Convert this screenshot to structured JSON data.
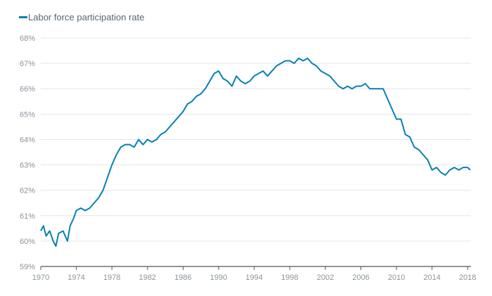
{
  "chart_data": {
    "type": "line",
    "title": "",
    "legend": [
      "Labor force participation rate"
    ],
    "legend_position": "top-left",
    "xlabel": "",
    "ylabel": "",
    "xlim": [
      1970,
      2018.3
    ],
    "ylim": [
      59,
      68
    ],
    "grid": true,
    "xticks": [
      "1970",
      "1974",
      "1978",
      "1982",
      "1986",
      "1990",
      "1994",
      "1998",
      "2002",
      "2006",
      "2010",
      "2014",
      "2018"
    ],
    "yticks": [
      "59%",
      "60%",
      "61%",
      "62%",
      "63%",
      "64%",
      "65%",
      "66%",
      "67%",
      "68%"
    ],
    "color": "#0a7fb5",
    "series": [
      {
        "name": "Labor force participation rate",
        "x": [
          1970,
          1970.3,
          1970.6,
          1971,
          1971.4,
          1971.7,
          1972,
          1972.5,
          1973,
          1973.3,
          1973.7,
          1974,
          1974.5,
          1975,
          1975.5,
          1976,
          1976.5,
          1977,
          1977.5,
          1978,
          1978.5,
          1979,
          1979.5,
          1980,
          1980.5,
          1981,
          1981.5,
          1982,
          1982.5,
          1983,
          1983.5,
          1984,
          1984.5,
          1985,
          1985.5,
          1986,
          1986.5,
          1987,
          1987.5,
          1988,
          1988.5,
          1989,
          1989.5,
          1990,
          1990.5,
          1991,
          1991.5,
          1992,
          1992.5,
          1993,
          1993.5,
          1994,
          1994.5,
          1995,
          1995.5,
          1996,
          1996.5,
          1997,
          1997.5,
          1998,
          1998.5,
          1999,
          1999.5,
          2000,
          2000.5,
          2001,
          2001.5,
          2002,
          2002.5,
          2003,
          2003.5,
          2004,
          2004.5,
          2005,
          2005.5,
          2006,
          2006.5,
          2007,
          2007.5,
          2008,
          2008.5,
          2009,
          2009.5,
          2010,
          2010.5,
          2011,
          2011.5,
          2012,
          2012.5,
          2013,
          2013.5,
          2014,
          2014.5,
          2015,
          2015.5,
          2016,
          2016.5,
          2017,
          2017.5,
          2018,
          2018.3
        ],
        "y": [
          60.4,
          60.6,
          60.2,
          60.4,
          60.0,
          59.8,
          60.3,
          60.4,
          60.0,
          60.6,
          60.9,
          61.2,
          61.3,
          61.2,
          61.3,
          61.5,
          61.7,
          62.0,
          62.5,
          63.0,
          63.4,
          63.7,
          63.8,
          63.8,
          63.7,
          64.0,
          63.8,
          64.0,
          63.9,
          64.0,
          64.2,
          64.3,
          64.5,
          64.7,
          64.9,
          65.1,
          65.4,
          65.5,
          65.7,
          65.8,
          66.0,
          66.3,
          66.6,
          66.7,
          66.4,
          66.3,
          66.1,
          66.5,
          66.3,
          66.2,
          66.3,
          66.5,
          66.6,
          66.7,
          66.5,
          66.7,
          66.9,
          67.0,
          67.1,
          67.1,
          67.0,
          67.2,
          67.1,
          67.2,
          67.0,
          66.9,
          66.7,
          66.6,
          66.5,
          66.3,
          66.1,
          66.0,
          66.1,
          66.0,
          66.1,
          66.1,
          66.2,
          66.0,
          66.0,
          66.0,
          66.0,
          65.6,
          65.2,
          64.8,
          64.8,
          64.2,
          64.1,
          63.7,
          63.6,
          63.4,
          63.2,
          62.8,
          62.9,
          62.7,
          62.6,
          62.8,
          62.9,
          62.8,
          62.9,
          62.9,
          62.8
        ]
      }
    ]
  }
}
